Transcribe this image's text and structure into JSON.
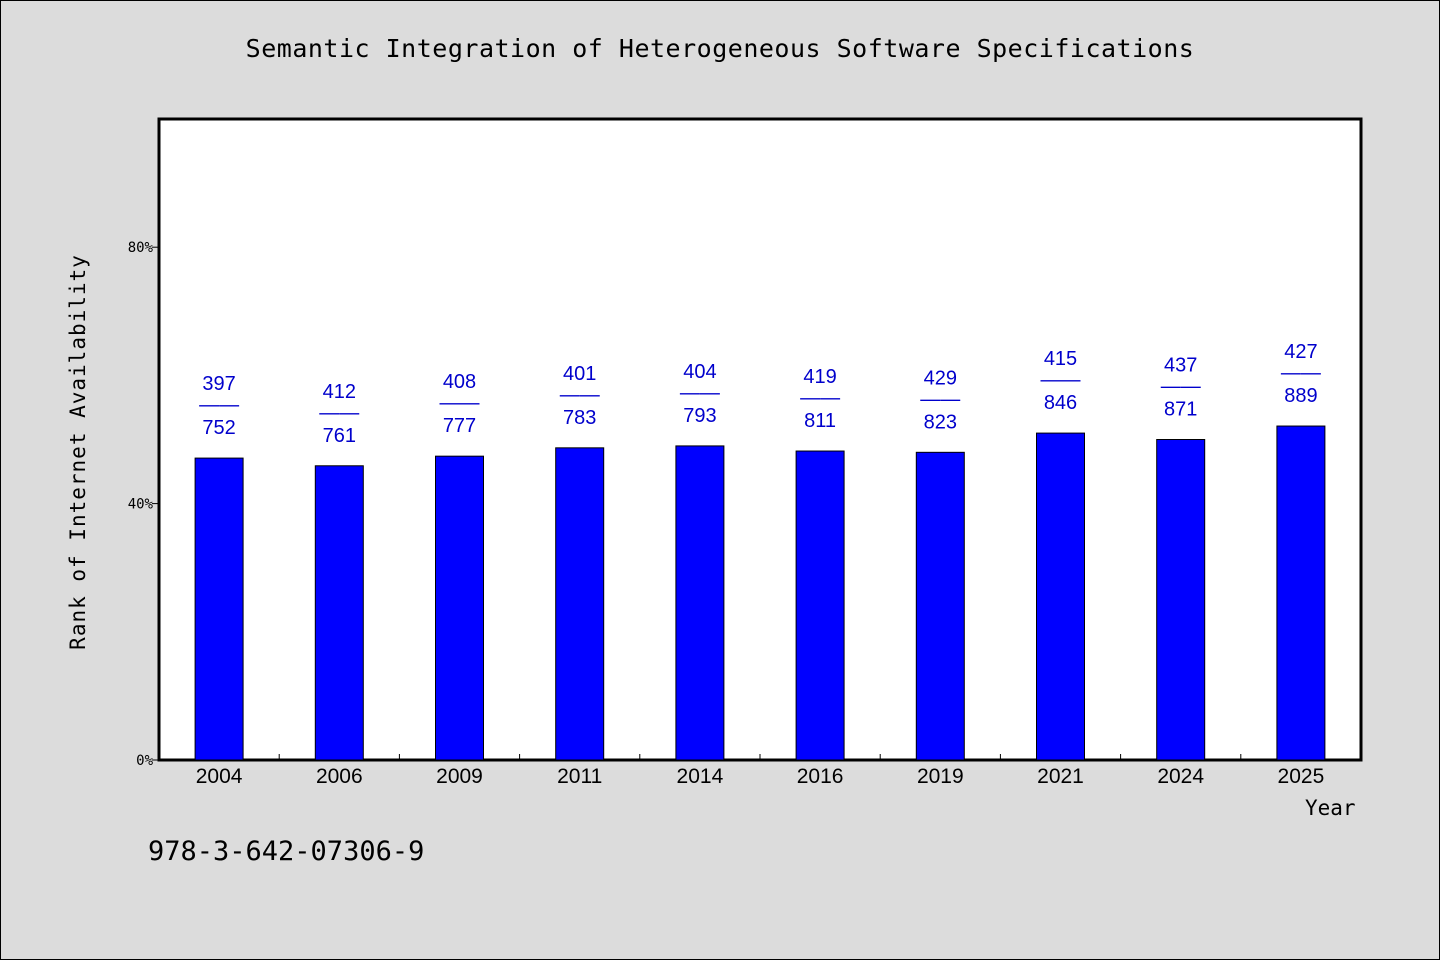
{
  "chart_data": {
    "type": "bar",
    "title": "Semantic Integration of Heterogeneous Software Specifications",
    "xlabel": "Year",
    "ylabel": "Rank of Internet Availability",
    "categories": [
      "2004",
      "2006",
      "2009",
      "2011",
      "2014",
      "2016",
      "2019",
      "2021",
      "2024",
      "2025"
    ],
    "values": [
      47.1,
      45.9,
      47.4,
      48.7,
      49.0,
      48.2,
      48.0,
      51.0,
      50.0,
      52.1
    ],
    "data_labels": [
      {
        "top": "397",
        "sep": "——",
        "bottom": "752"
      },
      {
        "top": "412",
        "sep": "——",
        "bottom": "761"
      },
      {
        "top": "408",
        "sep": "——",
        "bottom": "777"
      },
      {
        "top": "401",
        "sep": "——",
        "bottom": "783"
      },
      {
        "top": "404",
        "sep": "——",
        "bottom": "793"
      },
      {
        "top": "419",
        "sep": "——",
        "bottom": "811"
      },
      {
        "top": "429",
        "sep": "——",
        "bottom": "823"
      },
      {
        "top": "415",
        "sep": "——",
        "bottom": "846"
      },
      {
        "top": "437",
        "sep": "——",
        "bottom": "871"
      },
      {
        "top": "427",
        "sep": "——",
        "bottom": "889"
      }
    ],
    "yticks": [
      0,
      40,
      80
    ],
    "ytick_labels": [
      "0%",
      "40%",
      "80%"
    ],
    "ylim": [
      0,
      100
    ],
    "grid": false,
    "bar_color": "#0000ff",
    "label_color": "#0000cc"
  },
  "footer": {
    "isbn": "978-3-642-07306-9"
  }
}
